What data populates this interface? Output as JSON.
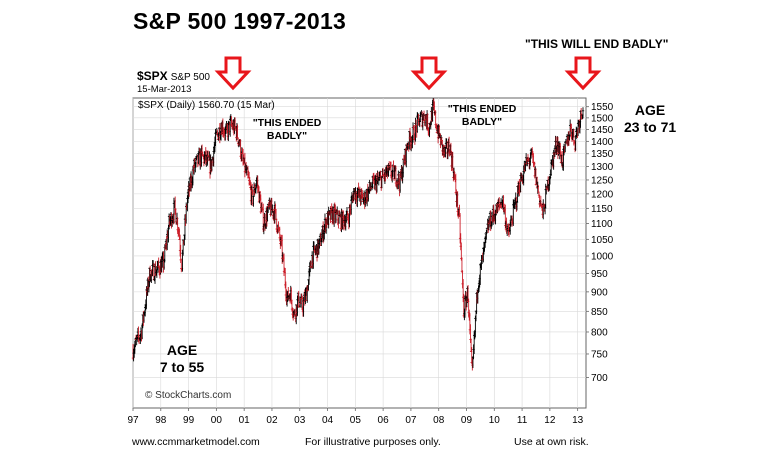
{
  "title": "S&P 500 1997-2013",
  "top_quote": "\"THIS WILL END BADLY\"",
  "symbol": "$SPX",
  "symbol_name": "S&P 500",
  "symbol_date": "15-Mar-2013",
  "legend": "$SPX (Daily) 1560.70 (15 Mar)",
  "watermark": "© StockCharts.com",
  "annotations": [
    {
      "lines": [
        "\"THIS ENDED",
        "BADLY\""
      ]
    },
    {
      "lines": [
        "\"THIS ENDED",
        "BADLY\""
      ]
    }
  ],
  "age_left": {
    "line1": "AGE",
    "line2": "7 to 55"
  },
  "age_right": {
    "line1": "AGE",
    "line2": "23 to 71"
  },
  "footer": {
    "left": "www.ccmmarketmodel.com",
    "middle": "For illustrative purposes only.",
    "right": "Use at own risk."
  },
  "colors": {
    "arrow": "#e8161b",
    "up_bar": "#000000",
    "down_bar": "#cc1f2a",
    "grid": "#d9d9d9"
  },
  "chart_data": {
    "type": "line",
    "title": "S&P 500 1997-2013",
    "series": [
      {
        "name": "$SPX (Daily)",
        "x": [
          1997.0,
          1997.3,
          1997.6,
          1997.85,
          1998.1,
          1998.3,
          1998.5,
          1998.65,
          1998.75,
          1998.95,
          1999.2,
          1999.45,
          1999.6,
          1999.8,
          2000.0,
          2000.2,
          2000.35,
          2000.5,
          2000.7,
          2000.8,
          2000.95,
          2001.15,
          2001.3,
          2001.45,
          2001.7,
          2001.9,
          2002.1,
          2002.35,
          2002.55,
          2002.65,
          2002.8,
          2002.95,
          2003.1,
          2003.25,
          2003.45,
          2003.7,
          2003.95,
          2004.2,
          2004.5,
          2004.75,
          2004.95,
          2005.3,
          2005.6,
          2005.9,
          2006.2,
          2006.45,
          2006.6,
          2006.9,
          2007.1,
          2007.3,
          2007.5,
          2007.65,
          2007.8,
          2007.95,
          2008.2,
          2008.4,
          2008.55,
          2008.75,
          2008.9,
          2009.05,
          2009.2,
          2009.4,
          2009.6,
          2009.8,
          2010.0,
          2010.3,
          2010.5,
          2010.65,
          2010.9,
          2011.15,
          2011.35,
          2011.6,
          2011.75,
          2011.95,
          2012.25,
          2012.45,
          2012.75,
          2012.9,
          2013.0,
          2013.2
        ],
        "values": [
          760,
          800,
          950,
          960,
          980,
          1100,
          1150,
          1080,
          970,
          1180,
          1300,
          1340,
          1330,
          1300,
          1420,
          1470,
          1430,
          1470,
          1450,
          1410,
          1320,
          1250,
          1180,
          1250,
          1100,
          1150,
          1140,
          1020,
          880,
          900,
          840,
          880,
          860,
          900,
          1000,
          1030,
          1110,
          1130,
          1110,
          1120,
          1210,
          1180,
          1230,
          1250,
          1280,
          1270,
          1240,
          1400,
          1430,
          1490,
          1510,
          1460,
          1540,
          1450,
          1350,
          1380,
          1270,
          1100,
          850,
          900,
          700,
          920,
          1000,
          1100,
          1130,
          1180,
          1060,
          1120,
          1230,
          1310,
          1340,
          1200,
          1130,
          1250,
          1400,
          1320,
          1460,
          1400,
          1460,
          1560
        ]
      }
    ],
    "x_ticks": [
      "97",
      "98",
      "99",
      "00",
      "01",
      "02",
      "03",
      "04",
      "05",
      "06",
      "07",
      "08",
      "09",
      "10",
      "11",
      "12",
      "13"
    ],
    "y_ticks": [
      700,
      750,
      800,
      850,
      900,
      950,
      1000,
      1050,
      1100,
      1150,
      1200,
      1250,
      1300,
      1350,
      1400,
      1450,
      1500,
      1550
    ],
    "x_range": [
      1997.0,
      2013.3
    ],
    "y_range": [
      640,
      1590
    ],
    "y_scale": "log",
    "grid": true
  }
}
